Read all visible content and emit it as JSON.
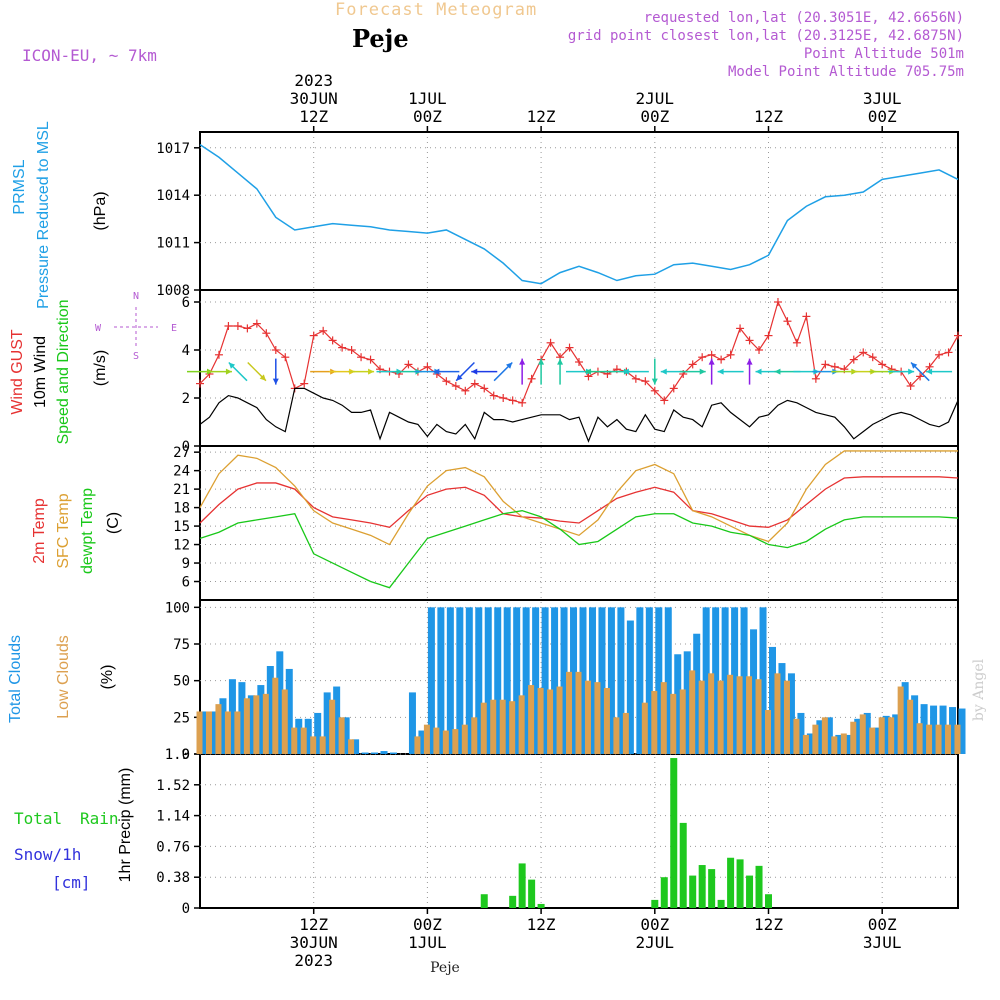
{
  "header": {
    "title": "Forecast Meteogram",
    "location": "Peje",
    "model": "ICON-EU, ~ 7km",
    "requested": "requested lon,lat (20.3051E, 42.6656N)",
    "grid_point": "grid point closest lon,lat (20.3125E, 42.6875N)",
    "point_altitude": "Point Altitude 501m",
    "model_altitude": "Model Point Altitude 705.75m"
  },
  "footer": {
    "location": "Peje",
    "credit": "by Angel"
  },
  "time_axis": {
    "ticks": [
      {
        "t": 12,
        "lines": [
          "12Z",
          "30JUN",
          "2023"
        ],
        "top_lines": [
          "2023",
          "30JUN",
          "12Z"
        ]
      },
      {
        "t": 24,
        "lines": [
          "00Z",
          "1JUL"
        ],
        "top_lines": [
          "1JUL",
          "00Z"
        ]
      },
      {
        "t": 36,
        "lines": [
          "12Z"
        ],
        "top_lines": [
          "12Z"
        ]
      },
      {
        "t": 48,
        "lines": [
          "00Z",
          "2JUL"
        ],
        "top_lines": [
          "2JUL",
          "00Z"
        ]
      },
      {
        "t": 60,
        "lines": [
          "12Z"
        ],
        "top_lines": [
          "12Z"
        ]
      },
      {
        "t": 72,
        "lines": [
          "00Z",
          "3JUL"
        ],
        "top_lines": [
          "3JUL",
          "00Z"
        ]
      }
    ]
  },
  "colors": {
    "pressure": "#1fa0e6",
    "gust": "#e63232",
    "wind": "#000000",
    "temp2m": "#e63232",
    "sfc": "#dca032",
    "dewpt": "#19c819",
    "total_clouds": "#1f96e6",
    "low_clouds": "#dca050",
    "rain": "#1ec81e",
    "purple": "#b45ad2",
    "snow_label": "#3232dc",
    "title": "#f0c890"
  },
  "chart_data": [
    {
      "type": "line",
      "panel": "pressure",
      "labels": [
        "PRMSL",
        "Pressure Reduced to MSL"
      ],
      "ylabel": "(hPa)",
      "ylim": [
        1008,
        1018
      ],
      "yticks": [
        1008,
        1011,
        1014,
        1017
      ],
      "x": [
        0,
        2,
        4,
        6,
        8,
        10,
        12,
        14,
        16,
        18,
        20,
        22,
        24,
        26,
        28,
        30,
        32,
        34,
        36,
        38,
        40,
        42,
        44,
        46,
        48,
        50,
        52,
        54,
        56,
        58,
        60,
        62,
        64,
        66,
        68,
        70,
        72,
        74,
        76,
        78,
        80
      ],
      "series": [
        {
          "name": "PRMSL",
          "values": [
            1017.2,
            1016.4,
            1015.4,
            1014.4,
            1012.6,
            1011.8,
            1012.0,
            1012.2,
            1012.1,
            1012.0,
            1011.8,
            1011.7,
            1011.6,
            1011.8,
            1011.2,
            1010.6,
            1009.7,
            1008.6,
            1008.4,
            1009.1,
            1009.5,
            1009.1,
            1008.6,
            1008.9,
            1009.0,
            1009.6,
            1009.7,
            1009.5,
            1009.3,
            1009.6,
            1010.2,
            1012.4,
            1013.3,
            1013.9,
            1014.0,
            1014.2,
            1015.0,
            1015.2,
            1015.4,
            1015.6,
            1015.0
          ]
        }
      ]
    },
    {
      "type": "line",
      "panel": "wind",
      "labels": [
        "Wind GUST",
        "10m Wind",
        "Speed and Direction"
      ],
      "ylabel": "(m/s)",
      "ylim": [
        0,
        6.5
      ],
      "yticks": [
        0,
        2,
        4,
        6
      ],
      "compass": [
        "N",
        "W",
        "E",
        "S"
      ],
      "gust_x": [
        0,
        1,
        2,
        3,
        4,
        5,
        6,
        7,
        8,
        9,
        10,
        11,
        12,
        13,
        14,
        15,
        16,
        17,
        18,
        19,
        20,
        21,
        22,
        23,
        24,
        25,
        26,
        27,
        28,
        29,
        30,
        31,
        32,
        33,
        34,
        35,
        36,
        37,
        38,
        39,
        40,
        41,
        42,
        43,
        44,
        45,
        46,
        47,
        48,
        49,
        50,
        51,
        52,
        53,
        54,
        55,
        56,
        57,
        58,
        59,
        60,
        61,
        62,
        63,
        64,
        65,
        66,
        67,
        68,
        69,
        70,
        71,
        72,
        73,
        74,
        75,
        76,
        77,
        78,
        79,
        80
      ],
      "gust": [
        2.6,
        3.0,
        3.8,
        5.0,
        5.0,
        4.9,
        5.1,
        4.7,
        4.0,
        3.7,
        2.4,
        2.6,
        4.6,
        4.8,
        4.4,
        4.1,
        4.0,
        3.7,
        3.6,
        3.2,
        3.1,
        3.0,
        3.4,
        3.1,
        3.3,
        3.0,
        2.7,
        2.5,
        2.3,
        2.6,
        2.4,
        2.1,
        2.0,
        1.9,
        1.8,
        2.8,
        3.6,
        4.3,
        3.7,
        4.1,
        3.5,
        2.9,
        3.1,
        3.0,
        3.2,
        3.1,
        2.8,
        2.7,
        2.3,
        1.9,
        2.4,
        3.0,
        3.4,
        3.7,
        3.8,
        3.6,
        3.8,
        4.9,
        4.4,
        4.0,
        4.6,
        6.0,
        5.2,
        4.3,
        5.4,
        2.8,
        3.4,
        3.3,
        3.2,
        3.6,
        3.9,
        3.7,
        3.4,
        3.2,
        3.1,
        2.5,
        2.9,
        3.3,
        3.8,
        3.9,
        4.6
      ],
      "wind": [
        0.9,
        1.2,
        1.8,
        2.1,
        2.0,
        1.8,
        1.6,
        1.1,
        0.8,
        0.6,
        2.4,
        2.4,
        2.2,
        2.0,
        1.9,
        1.7,
        1.4,
        1.4,
        1.5,
        0.3,
        1.4,
        1.2,
        1.0,
        0.9,
        0.4,
        0.9,
        0.6,
        0.5,
        0.9,
        0.3,
        1.4,
        1.1,
        1.1,
        1.0,
        1.1,
        1.2,
        1.3,
        1.3,
        1.3,
        1.1,
        1.2,
        0.2,
        1.2,
        0.8,
        1.1,
        0.7,
        0.6,
        1.3,
        0.7,
        0.6,
        1.5,
        1.2,
        1.1,
        0.8,
        1.7,
        1.8,
        1.4,
        1.1,
        0.8,
        1.2,
        1.3,
        1.7,
        1.9,
        1.8,
        1.6,
        1.4,
        1.3,
        1.2,
        0.8,
        0.3,
        0.6,
        0.9,
        1.1,
        1.3,
        1.4,
        1.3,
        1.1,
        0.9,
        0.8,
        1.0,
        1.9
      ],
      "barbs": [
        {
          "t": 0,
          "dir": "E",
          "c": "#7fd21e"
        },
        {
          "t": 2,
          "dir": "E",
          "c": "#a0d21e"
        },
        {
          "t": 4,
          "dir": "NW",
          "c": "#1ec8c8"
        },
        {
          "t": 6,
          "dir": "SE",
          "c": "#c8c81e"
        },
        {
          "t": 8,
          "dir": "S",
          "c": "#1e50e6"
        },
        {
          "t": 13,
          "dir": "E",
          "c": "#e6a01e"
        },
        {
          "t": 15,
          "dir": "E",
          "c": "#e6c81e"
        },
        {
          "t": 17,
          "dir": "E",
          "c": "#c8d21e"
        },
        {
          "t": 20,
          "dir": "E",
          "c": "#1ec8c8"
        },
        {
          "t": 22,
          "dir": "E",
          "c": "#1ec8a0"
        },
        {
          "t": 24,
          "dir": "E",
          "c": "#1e96e6"
        },
        {
          "t": 26,
          "dir": "W",
          "c": "#1e64e6"
        },
        {
          "t": 28,
          "dir": "SW",
          "c": "#1e50e6"
        },
        {
          "t": 30,
          "dir": "W",
          "c": "#1e3ce6"
        },
        {
          "t": 32,
          "dir": "NE",
          "c": "#1e78e6"
        },
        {
          "t": 34,
          "dir": "N",
          "c": "#8c1ee6"
        },
        {
          "t": 36,
          "dir": "N",
          "c": "#1ec8a0"
        },
        {
          "t": 38,
          "dir": "N",
          "c": "#1ec8a0"
        },
        {
          "t": 40,
          "dir": "E",
          "c": "#1ec8c8"
        },
        {
          "t": 42,
          "dir": "W",
          "c": "#1ec88c"
        },
        {
          "t": 44,
          "dir": "E",
          "c": "#1ec8a0"
        },
        {
          "t": 46,
          "dir": "W",
          "c": "#1ec8c8"
        },
        {
          "t": 48,
          "dir": "S",
          "c": "#1ec8a0"
        },
        {
          "t": 50,
          "dir": "W",
          "c": "#1ec8c8"
        },
        {
          "t": 52,
          "dir": "E",
          "c": "#1ec8a0"
        },
        {
          "t": 54,
          "dir": "N",
          "c": "#8c1ee6"
        },
        {
          "t": 56,
          "dir": "W",
          "c": "#1ec8c8"
        },
        {
          "t": 58,
          "dir": "N",
          "c": "#8c1ee6"
        },
        {
          "t": 60,
          "dir": "W",
          "c": "#1ec8c8"
        },
        {
          "t": 62,
          "dir": "W",
          "c": "#1ec8a0"
        },
        {
          "t": 64,
          "dir": "E",
          "c": "#1ec8c8"
        },
        {
          "t": 66,
          "dir": "E",
          "c": "#1e96e6"
        },
        {
          "t": 68,
          "dir": "E",
          "c": "#a0d21e"
        },
        {
          "t": 70,
          "dir": "E",
          "c": "#c8d21e"
        },
        {
          "t": 72,
          "dir": "E",
          "c": "#a0d21e"
        },
        {
          "t": 74,
          "dir": "E",
          "c": "#1ec8c8"
        },
        {
          "t": 76,
          "dir": "NW",
          "c": "#1e78e6"
        },
        {
          "t": 78,
          "dir": "W",
          "c": "#1ec8c8"
        }
      ]
    },
    {
      "type": "line",
      "panel": "temperature",
      "labels": [
        "2m Temp",
        "SFC Temp",
        "dewpt Temp"
      ],
      "ylabel": "(C)",
      "ylim": [
        3,
        28
      ],
      "yticks": [
        6,
        9,
        12,
        15,
        18,
        21,
        24,
        27
      ],
      "x": [
        0,
        2,
        4,
        6,
        8,
        10,
        12,
        14,
        16,
        18,
        20,
        22,
        24,
        26,
        28,
        30,
        32,
        34,
        36,
        38,
        40,
        42,
        44,
        46,
        48,
        50,
        52,
        54,
        56,
        58,
        60,
        62,
        64,
        66,
        68,
        70,
        72,
        74,
        76,
        78,
        80
      ],
      "series": [
        {
          "name": "2m Temp",
          "values": [
            15.5,
            18.5,
            21.0,
            22.0,
            22.0,
            21.0,
            18.0,
            16.5,
            16.0,
            15.5,
            14.8,
            17.5,
            20.0,
            21.0,
            21.3,
            20.0,
            17.0,
            16.5,
            16.3,
            15.8,
            15.5,
            17.5,
            19.5,
            20.5,
            21.3,
            20.5,
            17.5,
            17.0,
            16.0,
            15.0,
            14.8,
            16.0,
            18.5,
            21.0,
            22.8,
            23.0,
            23.0,
            23.0,
            23.0,
            23.0,
            22.8
          ]
        },
        {
          "name": "SFC Temp",
          "values": [
            18.0,
            23.5,
            26.5,
            26.0,
            24.5,
            21.5,
            17.5,
            15.5,
            14.5,
            13.5,
            12.0,
            17.0,
            21.5,
            24.0,
            24.5,
            23.0,
            19.0,
            16.5,
            15.5,
            14.5,
            13.5,
            16.0,
            20.5,
            24.0,
            25.0,
            23.5,
            17.5,
            16.5,
            15.0,
            13.5,
            12.5,
            15.5,
            21.0,
            25.0,
            27.2,
            27.2,
            27.2,
            27.2,
            27.2,
            27.2,
            27.2
          ]
        },
        {
          "name": "dewpt Temp",
          "values": [
            13.0,
            14.0,
            15.5,
            16.0,
            16.5,
            17.0,
            10.5,
            9.0,
            7.5,
            6.0,
            5.0,
            9.0,
            13.0,
            14.0,
            15.0,
            16.0,
            17.0,
            17.5,
            16.5,
            14.5,
            12.0,
            12.5,
            14.5,
            16.5,
            17.0,
            17.0,
            15.5,
            15.0,
            14.0,
            13.5,
            12.0,
            11.5,
            12.5,
            14.5,
            16.0,
            16.5,
            16.5,
            16.5,
            16.5,
            16.5,
            16.3
          ]
        }
      ]
    },
    {
      "type": "bar",
      "panel": "clouds",
      "labels": [
        "Total Clouds",
        "Low Clouds"
      ],
      "ylabel": "(%)",
      "ylim": [
        0,
        105
      ],
      "yticks": [
        0,
        25,
        50,
        75,
        100
      ],
      "x": [
        0,
        1,
        2,
        3,
        4,
        5,
        6,
        7,
        8,
        9,
        10,
        11,
        12,
        13,
        14,
        15,
        16,
        17,
        18,
        19,
        20,
        21,
        22,
        23,
        24,
        25,
        26,
        27,
        28,
        29,
        30,
        31,
        32,
        33,
        34,
        35,
        36,
        37,
        38,
        39,
        40,
        41,
        42,
        43,
        44,
        45,
        46,
        47,
        48,
        49,
        50,
        51,
        52,
        53,
        54,
        55,
        56,
        57,
        58,
        59,
        60,
        61,
        62,
        63,
        64,
        65,
        66,
        67,
        68,
        69,
        70,
        71,
        72,
        73,
        74,
        75,
        76,
        77,
        78,
        79,
        80
      ],
      "series": [
        {
          "name": "Total Clouds",
          "values": [
            29,
            29,
            38,
            51,
            49,
            40,
            47,
            60,
            70,
            58,
            24,
            24,
            28,
            42,
            46,
            25,
            10,
            1,
            1,
            2,
            1,
            0,
            42,
            16,
            100,
            100,
            100,
            100,
            100,
            100,
            100,
            100,
            100,
            100,
            100,
            100,
            100,
            100,
            100,
            100,
            100,
            100,
            100,
            100,
            100,
            91,
            100,
            100,
            100,
            100,
            68,
            70,
            82,
            100,
            100,
            100,
            100,
            100,
            85,
            100,
            73,
            62,
            55,
            28,
            14,
            23,
            25,
            13,
            13,
            24,
            28,
            18,
            26,
            27,
            49,
            40,
            34,
            33,
            33,
            32,
            31
          ]
        },
        {
          "name": "Low Clouds",
          "values": [
            29,
            29,
            34,
            29,
            29,
            38,
            40,
            41,
            52,
            44,
            18,
            18,
            12,
            12,
            37,
            25,
            10,
            0,
            0,
            0,
            0,
            0,
            0,
            12,
            20,
            18,
            16,
            17,
            20,
            25,
            35,
            37,
            37,
            36,
            40,
            47,
            45,
            44,
            46,
            56,
            56,
            50,
            49,
            45,
            25,
            28,
            0,
            35,
            43,
            49,
            41,
            44,
            57,
            50,
            55,
            50,
            54,
            53,
            53,
            51,
            30,
            55,
            50,
            24,
            13,
            20,
            25,
            12,
            14,
            22,
            27,
            18,
            25,
            25,
            46,
            37,
            21,
            20,
            20,
            20,
            20
          ]
        }
      ]
    },
    {
      "type": "bar",
      "panel": "precip",
      "labels": [
        "Total",
        "Rain",
        "Snow/1h",
        "[cm]"
      ],
      "ylabel": "1hr Precip (mm)",
      "ylim": [
        0,
        1.9
      ],
      "yticks": [
        0,
        0.38,
        0.76,
        1.14,
        1.52,
        1.9
      ],
      "x": [
        30,
        33,
        34,
        35,
        36,
        48,
        49,
        50,
        51,
        52,
        53,
        54,
        55,
        56,
        57,
        58,
        59,
        60,
        61,
        62,
        63,
        64
      ],
      "series": [
        {
          "name": "Total Rain",
          "values": [
            0.17,
            0.15,
            0.55,
            0.35,
            0.05,
            0.1,
            0.38,
            1.85,
            1.05,
            0.4,
            0.53,
            0.48,
            0.1,
            0.62,
            0.6,
            0.4,
            0.52,
            0.17,
            0,
            0,
            0,
            0
          ]
        }
      ]
    }
  ]
}
